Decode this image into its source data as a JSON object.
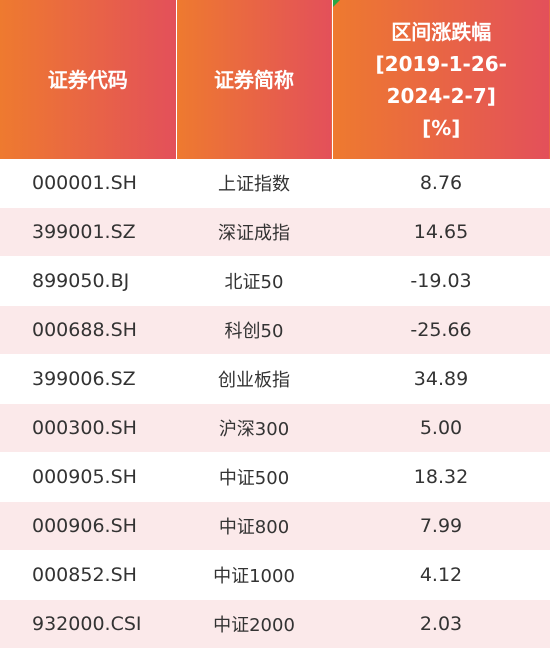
{
  "table": {
    "headers": {
      "code": "证券代码",
      "name": "证券简称",
      "change_lines": [
        "区间涨跌幅",
        "[2019-1-26-",
        "2024-2-7]",
        "[%]"
      ]
    },
    "rows": [
      {
        "code": "000001.SH",
        "name": "上证指数",
        "change": "8.76"
      },
      {
        "code": "399001.SZ",
        "name": "深证成指",
        "change": "14.65"
      },
      {
        "code": "899050.BJ",
        "name": "北证50",
        "change": "-19.03"
      },
      {
        "code": "000688.SH",
        "name": "科创50",
        "change": "-25.66"
      },
      {
        "code": "399006.SZ",
        "name": "创业板指",
        "change": "34.89"
      },
      {
        "code": "000300.SH",
        "name": "沪深300",
        "change": "5.00"
      },
      {
        "code": "000905.SH",
        "name": "中证500",
        "change": "18.32"
      },
      {
        "code": "000906.SH",
        "name": "中证800",
        "change": "7.99"
      },
      {
        "code": "000852.SH",
        "name": "中证1000",
        "change": "4.12"
      },
      {
        "code": "932000.CSI",
        "name": "中证2000",
        "change": "2.03"
      }
    ]
  },
  "colors": {
    "header_gradient_start": "#ee7a2f",
    "header_gradient_end": "#e3505a",
    "alt_row_background": "#fbe9ea",
    "corner_mark": "#27a745"
  }
}
